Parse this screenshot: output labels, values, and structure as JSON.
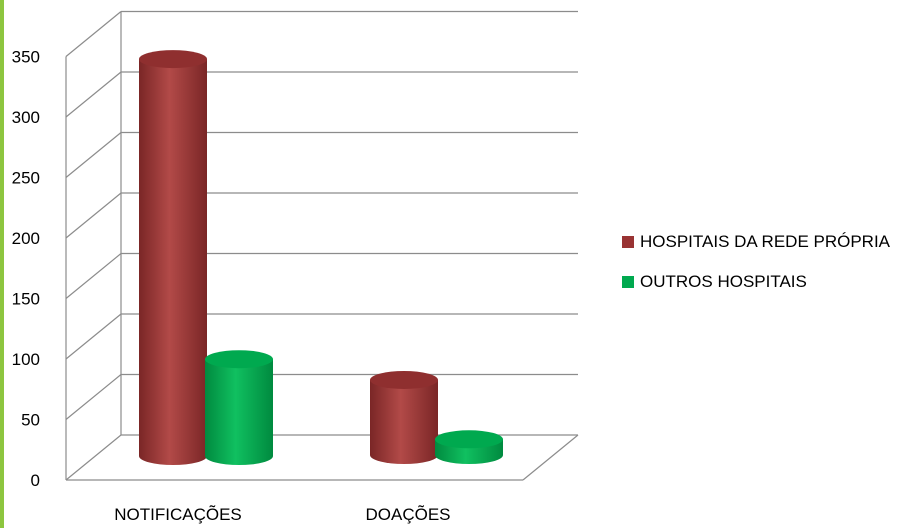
{
  "chart_data": {
    "type": "bar",
    "title": "",
    "xlabel": "",
    "ylabel": "",
    "categories": [
      "NOTIFICAÇÕES",
      "DOAÇÕES"
    ],
    "series": [
      {
        "name": "HOSPITAIS DA REDE PRÓPRIA",
        "values": [
          328,
          62
        ],
        "color": "#993333"
      },
      {
        "name": "OUTROS HOSPITAIS",
        "values": [
          80,
          13
        ],
        "color": "#00a94f"
      }
    ],
    "yticks": [
      0,
      50,
      100,
      150,
      200,
      250,
      300,
      350
    ],
    "ylim": [
      0,
      350
    ],
    "grid": true,
    "legend_position": "right",
    "style": "3d-cylinder"
  }
}
